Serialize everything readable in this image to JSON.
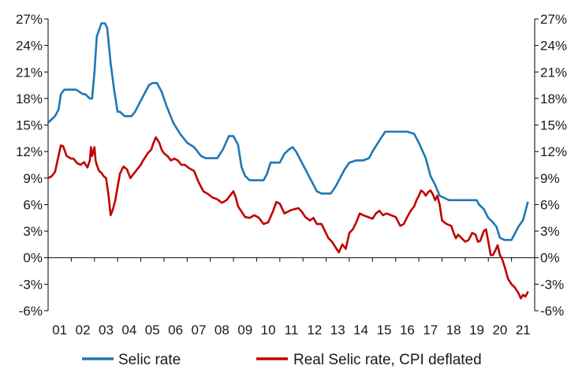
{
  "chart_data": {
    "type": "line",
    "title": "",
    "xlabel": "",
    "ylabel": "",
    "ylim": [
      -6,
      27
    ],
    "yticks": [
      -6,
      -3,
      0,
      3,
      6,
      9,
      12,
      15,
      18,
      21,
      24,
      27
    ],
    "ytick_labels": [
      "-6%",
      "-3%",
      "0%",
      "3%",
      "6%",
      "9%",
      "12%",
      "15%",
      "18%",
      "21%",
      "24%",
      "27%"
    ],
    "y2tick_labels": [
      "-6%",
      "-3%",
      "0%",
      "3%",
      "6%",
      "9%",
      "12%",
      "15%",
      "18%",
      "21%",
      "24%",
      "27%"
    ],
    "xlim": [
      2001.0,
      2022.0
    ],
    "xticks": [
      2001,
      2002,
      2003,
      2004,
      2005,
      2006,
      2007,
      2008,
      2009,
      2010,
      2011,
      2012,
      2013,
      2014,
      2015,
      2016,
      2017,
      2018,
      2019,
      2020,
      2021
    ],
    "xtick_labels": [
      "01",
      "02",
      "03",
      "04",
      "05",
      "06",
      "07",
      "08",
      "09",
      "10",
      "11",
      "12",
      "13",
      "14",
      "15",
      "16",
      "17",
      "18",
      "19",
      "20",
      "21"
    ],
    "grid": false,
    "legend_position": "bottom",
    "series": [
      {
        "name": "Selic rate",
        "color": "#1f77b4",
        "x": [
          2001.0,
          2001.3,
          2001.45,
          2001.55,
          2001.7,
          2002.0,
          2002.2,
          2002.5,
          2002.6,
          2002.8,
          2002.9,
          2003.0,
          2003.1,
          2003.3,
          2003.45,
          2003.55,
          2003.7,
          2003.85,
          2004.0,
          2004.1,
          2004.3,
          2004.45,
          2004.6,
          2004.75,
          2005.0,
          2005.2,
          2005.35,
          2005.5,
          2005.7,
          2005.9,
          2006.1,
          2006.4,
          2006.7,
          2007.0,
          2007.3,
          2007.6,
          2007.8,
          2008.0,
          2008.3,
          2008.55,
          2008.8,
          2009.0,
          2009.2,
          2009.35,
          2009.5,
          2009.7,
          2010.0,
          2010.3,
          2010.45,
          2010.6,
          2010.8,
          2011.0,
          2011.2,
          2011.4,
          2011.55,
          2011.7,
          2011.9,
          2012.2,
          2012.4,
          2012.6,
          2012.8,
          2013.0,
          2013.2,
          2013.4,
          2013.6,
          2013.8,
          2014.0,
          2014.3,
          2014.6,
          2014.85,
          2015.0,
          2015.3,
          2015.55,
          2015.7,
          2016.0,
          2016.5,
          2016.8,
          2017.0,
          2017.3,
          2017.5,
          2017.7,
          2017.9,
          2018.1,
          2018.3,
          2018.5,
          2019.0,
          2019.5,
          2019.6,
          2019.8,
          2020.0,
          2020.2,
          2020.35,
          2020.5,
          2020.7,
          2021.0,
          2021.15,
          2021.3,
          2021.5,
          2021.7
        ],
        "y": [
          15.25,
          16.0,
          16.75,
          18.5,
          19.0,
          19.0,
          19.0,
          18.5,
          18.5,
          18.0,
          18.0,
          21.0,
          25.0,
          26.5,
          26.5,
          26.0,
          22.0,
          19.0,
          16.5,
          16.5,
          16.0,
          16.0,
          16.0,
          16.5,
          17.75,
          18.75,
          19.5,
          19.75,
          19.75,
          18.75,
          17.25,
          15.25,
          14.0,
          13.0,
          12.5,
          11.5,
          11.25,
          11.25,
          11.25,
          12.25,
          13.75,
          13.75,
          12.75,
          10.25,
          9.25,
          8.75,
          8.75,
          8.75,
          9.5,
          10.75,
          10.75,
          10.75,
          11.75,
          12.25,
          12.5,
          12.0,
          11.0,
          9.5,
          8.5,
          7.5,
          7.25,
          7.25,
          7.25,
          8.0,
          9.0,
          10.0,
          10.75,
          11.0,
          11.0,
          11.25,
          12.0,
          13.25,
          14.25,
          14.25,
          14.25,
          14.25,
          14.0,
          13.0,
          11.25,
          9.25,
          8.25,
          7.0,
          6.75,
          6.5,
          6.5,
          6.5,
          6.5,
          6.0,
          5.5,
          4.5,
          4.0,
          3.5,
          2.25,
          2.0,
          2.0,
          2.75,
          3.5,
          4.25,
          6.25
        ]
      },
      {
        "name": "Real Selic rate, CPI deflated",
        "color": "#c00000",
        "x": [
          2001.0,
          2001.15,
          2001.3,
          2001.45,
          2001.55,
          2001.65,
          2001.8,
          2002.0,
          2002.1,
          2002.25,
          2002.4,
          2002.55,
          2002.7,
          2002.8,
          2002.85,
          2002.9,
          2003.0,
          2003.05,
          2003.1,
          2003.2,
          2003.3,
          2003.4,
          2003.5,
          2003.6,
          2003.7,
          2003.8,
          2003.9,
          2004.0,
          2004.1,
          2004.25,
          2004.4,
          2004.55,
          2004.7,
          2004.85,
          2005.0,
          2005.1,
          2005.3,
          2005.45,
          2005.55,
          2005.65,
          2005.8,
          2005.9,
          2006.0,
          2006.15,
          2006.3,
          2006.45,
          2006.6,
          2006.75,
          2006.9,
          2007.1,
          2007.3,
          2007.5,
          2007.7,
          2007.9,
          2008.1,
          2008.3,
          2008.5,
          2008.7,
          2008.85,
          2009.0,
          2009.1,
          2009.2,
          2009.35,
          2009.5,
          2009.7,
          2009.9,
          2010.1,
          2010.3,
          2010.5,
          2010.7,
          2010.85,
          2011.0,
          2011.2,
          2011.35,
          2011.5,
          2011.65,
          2011.8,
          2011.95,
          2012.1,
          2012.3,
          2012.45,
          2012.6,
          2012.8,
          2012.95,
          2013.1,
          2013.25,
          2013.4,
          2013.55,
          2013.7,
          2013.85,
          2014.0,
          2014.15,
          2014.3,
          2014.45,
          2014.6,
          2014.8,
          2015.0,
          2015.15,
          2015.3,
          2015.45,
          2015.6,
          2015.8,
          2016.0,
          2016.2,
          2016.35,
          2016.5,
          2016.65,
          2016.8,
          2016.9,
          2017.0,
          2017.1,
          2017.2,
          2017.3,
          2017.4,
          2017.5,
          2017.6,
          2017.7,
          2017.8,
          2017.9,
          2018.0,
          2018.2,
          2018.4,
          2018.5,
          2018.6,
          2018.7,
          2018.85,
          2019.0,
          2019.15,
          2019.3,
          2019.45,
          2019.55,
          2019.65,
          2019.8,
          2019.9,
          2020.0,
          2020.1,
          2020.2,
          2020.3,
          2020.4,
          2020.5,
          2020.6,
          2020.7,
          2020.85,
          2021.0,
          2021.15,
          2021.3,
          2021.4,
          2021.5,
          2021.6,
          2021.7
        ],
        "y": [
          9.0,
          9.2,
          9.7,
          11.5,
          12.7,
          12.6,
          11.5,
          11.2,
          11.2,
          10.7,
          10.5,
          10.8,
          10.2,
          11.0,
          12.5,
          11.5,
          12.5,
          11.0,
          10.5,
          9.8,
          9.6,
          9.2,
          9.0,
          7.2,
          4.8,
          5.5,
          6.5,
          8.0,
          9.5,
          10.3,
          10.0,
          9.0,
          9.5,
          10.0,
          10.5,
          11.0,
          11.8,
          12.2,
          13.0,
          13.6,
          13.0,
          12.2,
          11.8,
          11.5,
          11.0,
          11.2,
          11.0,
          10.5,
          10.5,
          10.1,
          9.8,
          8.5,
          7.5,
          7.2,
          6.8,
          6.6,
          6.2,
          6.5,
          7.0,
          7.5,
          6.8,
          5.8,
          5.2,
          4.6,
          4.5,
          4.8,
          4.5,
          3.8,
          4.0,
          5.2,
          6.3,
          6.1,
          5.0,
          5.2,
          5.4,
          5.5,
          5.6,
          5.2,
          4.6,
          4.2,
          4.5,
          3.8,
          3.8,
          3.0,
          2.2,
          1.8,
          1.2,
          0.6,
          1.5,
          1.0,
          2.8,
          3.2,
          4.0,
          5.0,
          4.8,
          4.6,
          4.4,
          5.0,
          5.3,
          4.8,
          5.0,
          4.8,
          4.6,
          3.6,
          3.8,
          4.6,
          5.3,
          5.8,
          6.5,
          7.0,
          7.6,
          7.4,
          7.0,
          7.4,
          7.6,
          7.2,
          6.5,
          7.0,
          6.0,
          4.2,
          3.8,
          3.6,
          2.8,
          2.2,
          2.6,
          2.2,
          1.8,
          2.0,
          2.8,
          2.6,
          1.8,
          1.9,
          3.0,
          3.2,
          1.8,
          0.3,
          0.3,
          0.8,
          1.4,
          0.3,
          -0.2,
          -1.0,
          -2.4,
          -3.0,
          -3.4,
          -4.0,
          -4.6,
          -4.2,
          -4.4,
          -3.9
        ]
      }
    ]
  }
}
